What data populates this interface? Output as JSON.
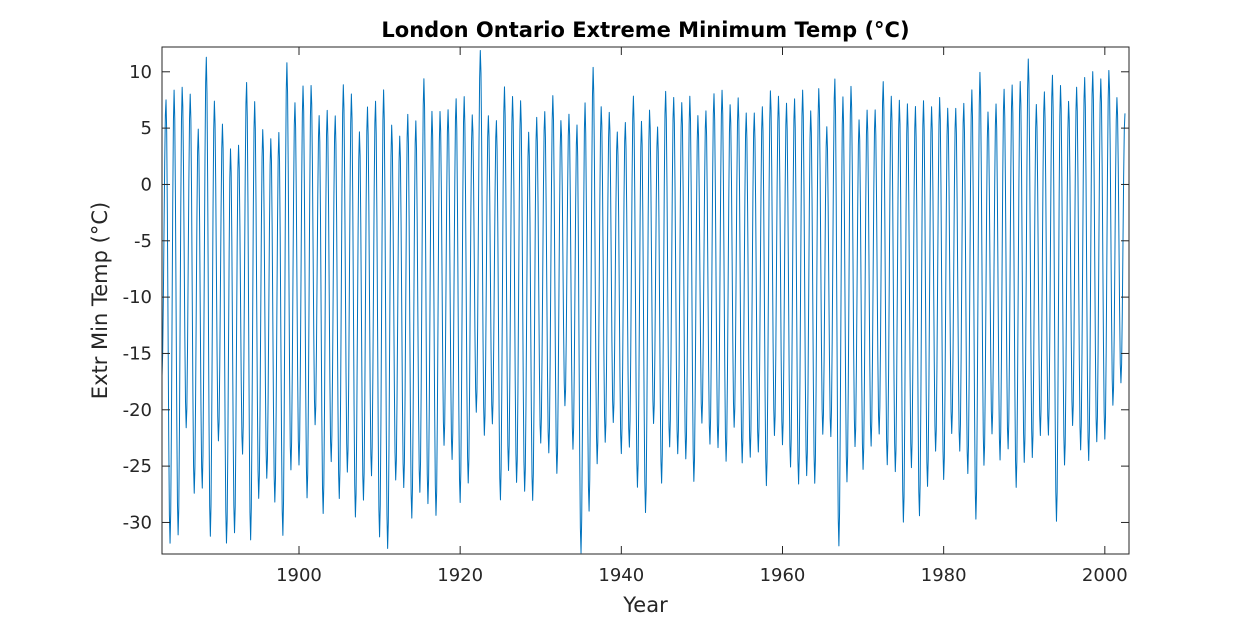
{
  "chart_data": {
    "type": "line",
    "title": "London Ontario Extreme Minimum Temp (°C)",
    "xlabel": "Year",
    "ylabel": "Extr Min Temp (°C)",
    "xlim": [
      1883,
      2003
    ],
    "ylim": [
      -32.8,
      12.2
    ],
    "xticks": [
      1900,
      1920,
      1940,
      1960,
      1980,
      2000
    ],
    "yticks": [
      10,
      5,
      0,
      -5,
      -10,
      -15,
      -20,
      -25,
      -30
    ],
    "grid": false,
    "color": "#0072BD",
    "series": [
      {
        "sampling": "monthly",
        "start_year": 1883,
        "summer_max": [
          7,
          7.5,
          8.5,
          8.8,
          5.6,
          11,
          6.5,
          5,
          3.8,
          4.3,
          9,
          6.5,
          4.3,
          4.5,
          5.5,
          11,
          6.5,
          8,
          9,
          7,
          7,
          5.5,
          8,
          8,
          5.5,
          7.5,
          7,
          7.5,
          5,
          5,
          7,
          5.5,
          8.5,
          6,
          7,
          7.5,
          7.7,
          7,
          5.5,
          12.2,
          7,
          6,
          8,
          7,
          7.5,
          5.5,
          6.5,
          6,
          7,
          5.5,
          7,
          6,
          7,
          9.5,
          6.5,
          7,
          5.5,
          5.5,
          7,
          5,
          7,
          6,
          8.5,
          7,
          6.5,
          8,
          7,
          7,
          7.5,
          7.5,
          7,
          8.5,
          7,
          6,
          6,
          8,
          8.5,
          8,
          7.5,
          7.5,
          6,
          9,
          6,
          9.5,
          7,
          8,
          6,
          7.5,
          7,
          8.5,
          7,
          7.5,
          8,
          7.5,
          7,
          6,
          7.5,
          7.5,
          7.5,
          7,
          7.5,
          9.5,
          7,
          8,
          8.5,
          8,
          8.5,
          11.5,
          8,
          8.5,
          9,
          8,
          7.5,
          9.5,
          10,
          9.5,
          8.5,
          10,
          8.5,
          7,
          10.2
        ],
        "winter_min": [
          -17,
          -31,
          -30.5,
          -22,
          -28.3,
          -27.2,
          -30.5,
          -22,
          -32,
          -31.8,
          -24.4,
          -31,
          -27,
          -26,
          -29,
          -31.8,
          -25,
          -24,
          -27.5,
          -22,
          -30,
          -24.5,
          -27,
          -25,
          -30,
          -28.9,
          -26,
          -30.5,
          -31.6,
          -26.5,
          -27.8,
          -30,
          -26.7,
          -27.5,
          -29.4,
          -24,
          -25,
          -27.8,
          -25.6,
          -20,
          -23,
          -22,
          -27.8,
          -24.5,
          -26,
          -27.8,
          -28.9,
          -23,
          -23,
          -25,
          -20,
          -24.4,
          -33,
          -28.3,
          -24,
          -23,
          -22,
          -24.4,
          -22.8,
          -26,
          -29,
          -22,
          -27.2,
          -23,
          -23,
          -24,
          -27,
          -22,
          -23,
          -22.5,
          -24,
          -22,
          -25.6,
          -24.4,
          -23,
          -26,
          -22.5,
          -24,
          -25.5,
          -26,
          -25,
          -26.5,
          -23,
          -23,
          -31.7,
          -25.5,
          -23,
          -26,
          -24,
          -22,
          -24,
          -25,
          -30.5,
          -26,
          -29.5,
          -26,
          -23,
          -26.5,
          -23,
          -24,
          -25,
          -28.9,
          -25,
          -23,
          -25,
          -23,
          -26,
          -24.5,
          -25,
          -23,
          -22,
          -29,
          -24.5,
          -22,
          -24.4,
          -24.5,
          -22,
          -22,
          -20,
          -18.5
        ]
      }
    ]
  }
}
